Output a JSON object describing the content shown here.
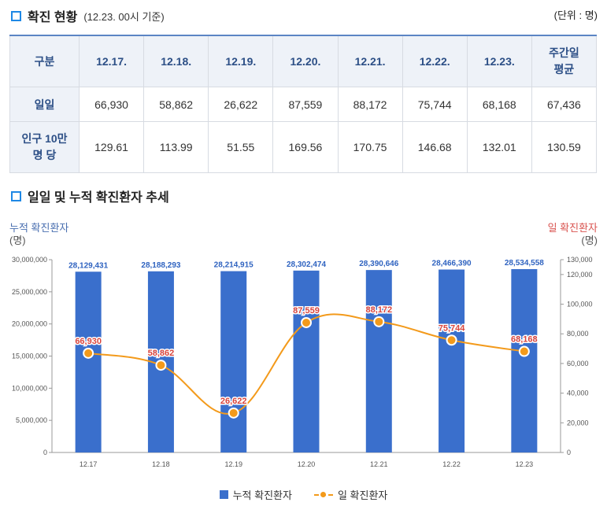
{
  "header": {
    "title": "확진 현황",
    "subtitle": "(12.23. 00시 기준)",
    "unit": "(단위 : 명)"
  },
  "table": {
    "corner": "구분",
    "columns": [
      "12.17.",
      "12.18.",
      "12.19.",
      "12.20.",
      "12.21.",
      "12.22.",
      "12.23.",
      "주간일\n평균"
    ],
    "rows": [
      {
        "label": "일일",
        "values": [
          "66,930",
          "58,862",
          "26,622",
          "87,559",
          "88,172",
          "75,744",
          "68,168",
          "67,436"
        ]
      },
      {
        "label": "인구 10만\n명 당",
        "values": [
          "129.61",
          "113.99",
          "51.55",
          "169.56",
          "170.75",
          "146.68",
          "132.01",
          "130.59"
        ]
      }
    ]
  },
  "chart_section": {
    "title": "일일 및 누적 확진환자 추세"
  },
  "chart_data": {
    "type": "bar",
    "categories": [
      "12.17",
      "12.18",
      "12.19",
      "12.20",
      "12.21",
      "12.22",
      "12.23"
    ],
    "left_axis": {
      "title": "누적 확진환자",
      "unit": "(명)",
      "ticks": [
        "0",
        "5,000,000",
        "10,000,000",
        "15,000,000",
        "20,000,000",
        "25,000,000",
        "30,000,000"
      ],
      "ylim": [
        0,
        30000000
      ]
    },
    "right_axis": {
      "title": "일 확진환자",
      "unit": "(명)",
      "ticks": [
        "0",
        "20,000",
        "40,000",
        "60,000",
        "80,000",
        "100,000",
        "120,000",
        "130,000"
      ],
      "ylim": [
        0,
        130000
      ]
    },
    "series": [
      {
        "name": "누적 확진환자",
        "type": "bar",
        "axis": "left",
        "color": "#3a6fcc",
        "values": [
          28129431,
          28188293,
          28214915,
          28302474,
          28390646,
          28466390,
          28534558
        ],
        "labels": [
          "28,129,431",
          "28,188,293",
          "28,214,915",
          "28,302,474",
          "28,390,646",
          "28,466,390",
          "28,534,558"
        ]
      },
      {
        "name": "일 확진환자",
        "type": "line",
        "axis": "right",
        "color": "#f39a1b",
        "values": [
          66930,
          58862,
          26622,
          87559,
          88172,
          75744,
          68168
        ],
        "labels": [
          "66,930",
          "58,862",
          "26,622",
          "87,559",
          "88,172",
          "75,744",
          "68,168"
        ]
      }
    ],
    "legend_position": "bottom"
  },
  "legend": {
    "bar_label": "누적 확진환자",
    "line_label": "일 확진환자"
  }
}
